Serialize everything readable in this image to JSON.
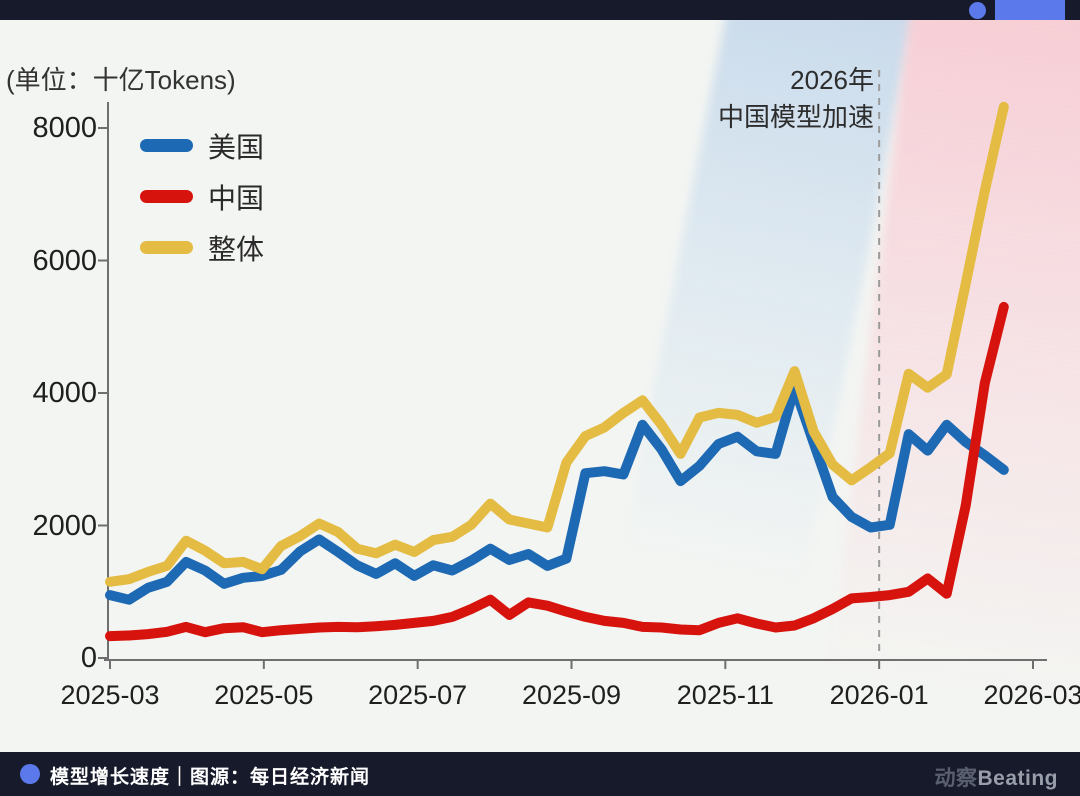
{
  "top_bar": {
    "accent_color": "#5b79ea"
  },
  "chart": {
    "unit_label": "(单位：十亿Tokens)"
  },
  "chart_data": {
    "type": "line",
    "title": "",
    "xlabel": "",
    "ylabel": "(单位：十亿Tokens)",
    "unit": "十亿Tokens (billion tokens)",
    "x_tick_labels": [
      "2025-03",
      "2025-05",
      "2025-07",
      "2025-09",
      "2025-11",
      "2026-01",
      "2026-03"
    ],
    "y_tick_values": [
      0,
      2000,
      4000,
      6000,
      8000
    ],
    "ylim": [
      0,
      8600
    ],
    "x_range": [
      "2025-03",
      "2026-02 (data ends)"
    ],
    "data_cadence": "approximately weekly points",
    "grid": "off",
    "legend_position": "upper-left",
    "annotation": {
      "line1": "2026年",
      "line2": "中国模型加速",
      "at_tick": "2026-01"
    },
    "dashed_marker_at_tick": "2026-01",
    "series": [
      {
        "name": "美国",
        "color": "#1d69b3",
        "values": [
          950,
          880,
          1060,
          1150,
          1450,
          1320,
          1120,
          1210,
          1240,
          1330,
          1610,
          1790,
          1600,
          1400,
          1270,
          1430,
          1240,
          1400,
          1320,
          1470,
          1650,
          1480,
          1570,
          1390,
          1500,
          2790,
          2820,
          2770,
          3520,
          3150,
          2670,
          2900,
          3230,
          3340,
          3120,
          3080,
          4080,
          3250,
          2430,
          2130,
          1970,
          2010,
          3380,
          3130,
          3520,
          3260,
          3060,
          2840
        ]
      },
      {
        "name": "中国",
        "color": "#d7130e",
        "values": [
          330,
          340,
          360,
          395,
          470,
          390,
          450,
          465,
          390,
          420,
          440,
          460,
          470,
          465,
          480,
          500,
          530,
          560,
          620,
          740,
          880,
          650,
          840,
          790,
          700,
          620,
          560,
          530,
          470,
          460,
          430,
          420,
          530,
          600,
          520,
          460,
          490,
          600,
          740,
          900,
          920,
          950,
          1000,
          1200,
          970,
          2300,
          4150,
          5300
        ]
      },
      {
        "name": "整体",
        "color": "#e4bc44",
        "values": [
          1150,
          1190,
          1300,
          1390,
          1770,
          1620,
          1430,
          1450,
          1340,
          1690,
          1840,
          2030,
          1900,
          1650,
          1580,
          1710,
          1600,
          1780,
          1830,
          2010,
          2330,
          2090,
          2030,
          1970,
          2950,
          3350,
          3480,
          3700,
          3890,
          3520,
          3080,
          3630,
          3700,
          3670,
          3550,
          3640,
          4330,
          3420,
          2920,
          2680,
          2880,
          3090,
          4290,
          4080,
          4280,
          5650,
          7050,
          8320
        ]
      }
    ]
  },
  "footer": {
    "caption": "模型增长速度｜图源：每日经济新闻",
    "logo_cn": "动察",
    "logo_en": "Beating",
    "accent_color": "#5b79ea"
  }
}
